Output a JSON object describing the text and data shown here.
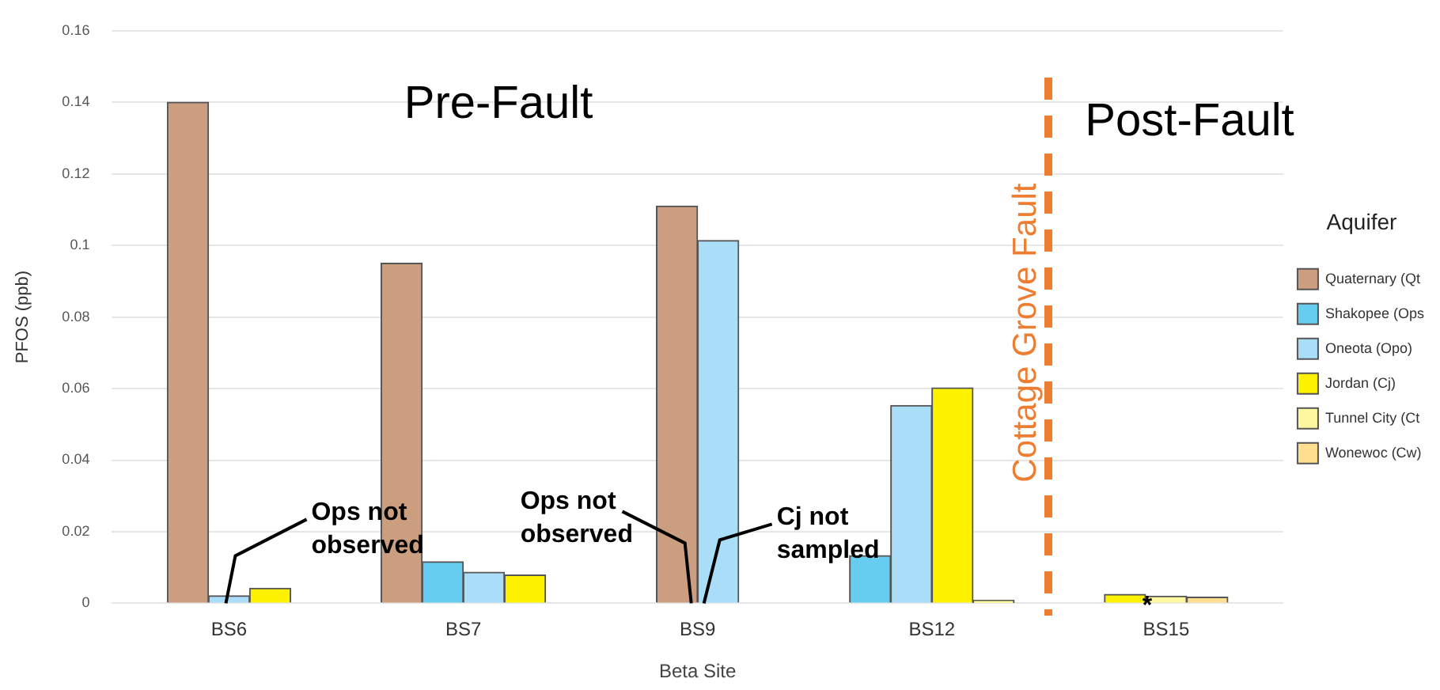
{
  "chart_data": {
    "type": "bar",
    "categories": [
      "BS6",
      "BS7",
      "BS9",
      "BS12",
      "BS15"
    ],
    "series": [
      {
        "name": "Quaternary (Qt",
        "color": "#cc9e80",
        "values": [
          0.14,
          0.095,
          0.111,
          null,
          null
        ]
      },
      {
        "name": "Shakopee (Ops",
        "color": "#66ccf0",
        "values": [
          null,
          0.0116,
          null,
          0.0133,
          null
        ]
      },
      {
        "name": "Oneota (Opo)",
        "color": "#aadef8",
        "values": [
          0.0021,
          0.0087,
          0.1014,
          0.0553,
          null
        ]
      },
      {
        "name": "Jordan (Cj)",
        "color": "#fff200",
        "values": [
          0.0042,
          0.0079,
          null,
          0.0602,
          0.0025
        ]
      },
      {
        "name": "Tunnel City (Ct",
        "color": "#fff6a0",
        "values": [
          null,
          null,
          null,
          0.0008,
          0.002
        ]
      },
      {
        "name": "Wonewoc (Cw)",
        "color": "#ffdf8f",
        "values": [
          null,
          null,
          null,
          null,
          0.0017
        ]
      }
    ],
    "xlabel": "Beta Site",
    "ylabel": "PFOS (ppb)",
    "legend_title": "Aquifer",
    "ylim": [
      0,
      0.16
    ],
    "yticks": [
      0,
      0.02,
      0.04,
      0.06,
      0.08,
      0.1,
      0.12,
      0.14,
      0.16
    ],
    "grid": "y",
    "legend": "right",
    "annotations": [
      "Pre-Fault",
      "Post-Fault",
      "Cottage Grove Fault",
      {
        "text": "Ops not observed",
        "x": "BS6",
        "y": 0
      },
      {
        "text": "Ops not observed",
        "x": "BS9",
        "y": 0
      },
      {
        "text": "Cj not sampled",
        "x": "BS9",
        "y": 0
      },
      {
        "text": "*",
        "x": "BS15",
        "y": 0
      }
    ]
  }
}
